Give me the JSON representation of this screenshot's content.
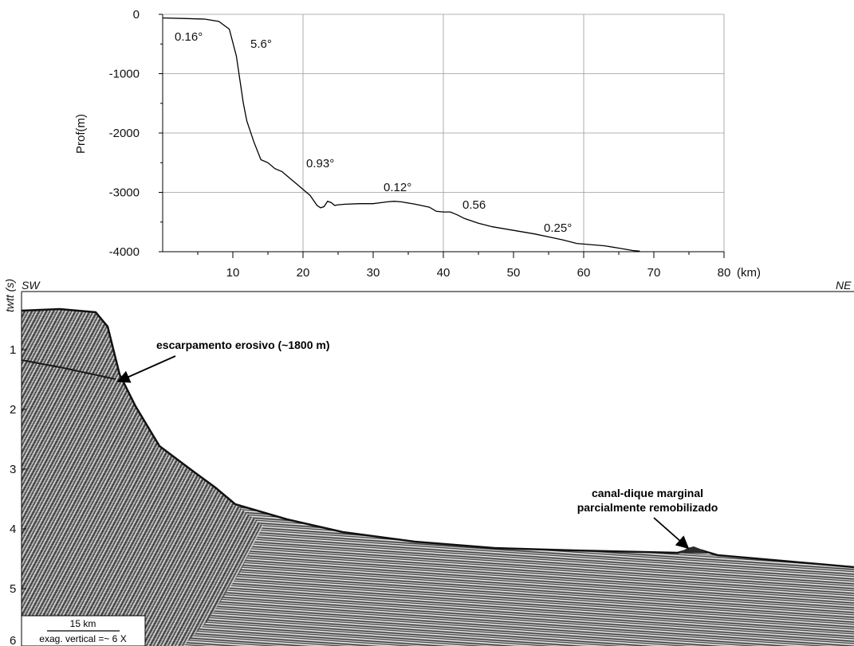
{
  "chart_data": {
    "type": "line",
    "title": "",
    "xlabel": "",
    "xunit": "(km)",
    "ylabel": "Prof(m)",
    "xlim": [
      0,
      80
    ],
    "ylim": [
      -4000,
      0
    ],
    "xticks": [
      "10",
      "20",
      "30",
      "40",
      "50",
      "60",
      "70",
      "80"
    ],
    "yticks": [
      "0",
      "-1000",
      "-2000",
      "-3000",
      "-4000"
    ],
    "grid": true,
    "legend": "none",
    "series": [
      {
        "x": [
          0,
          3,
          6,
          8,
          9.5,
          10.5,
          11,
          11.5,
          12,
          13,
          14,
          15,
          16,
          17,
          18,
          19,
          20,
          21,
          22,
          22.5,
          23,
          23.5,
          24,
          24.5,
          25,
          26,
          28,
          30,
          32,
          33,
          34,
          36,
          38,
          39,
          40,
          41,
          42,
          43,
          45,
          47,
          50,
          53,
          55,
          57,
          59,
          61,
          63,
          65,
          67,
          68
        ],
        "y": [
          -60,
          -70,
          -80,
          -120,
          -250,
          -700,
          -1100,
          -1500,
          -1800,
          -2150,
          -2450,
          -2500,
          -2600,
          -2650,
          -2750,
          -2850,
          -2950,
          -3050,
          -3220,
          -3260,
          -3240,
          -3150,
          -3170,
          -3220,
          -3210,
          -3200,
          -3190,
          -3190,
          -3160,
          -3150,
          -3160,
          -3200,
          -3250,
          -3320,
          -3330,
          -3330,
          -3380,
          -3440,
          -3520,
          -3580,
          -3640,
          -3700,
          -3750,
          -3800,
          -3860,
          -3880,
          -3900,
          -3940,
          -3980,
          -3990
        ]
      }
    ],
    "slope_annotations": [
      "0.16°",
      "5.6°",
      "0.93°",
      "0.12°",
      "0.56",
      "0.25°"
    ]
  },
  "seismic": {
    "left_label": "SW",
    "right_label": "NE",
    "axis_label": "twtt (s)",
    "time_ticks": [
      "1",
      "2",
      "3",
      "4",
      "5",
      "6"
    ],
    "annotation_scarp": "escarpamento erosivo (~1800 m)",
    "annotation_channel_line1": "canal-dique marginal",
    "annotation_channel_line2": "parcialmente remobilizado",
    "scale_bar_label": "15 km",
    "exaggeration_label": "exag. vertical =~ 6 X"
  }
}
